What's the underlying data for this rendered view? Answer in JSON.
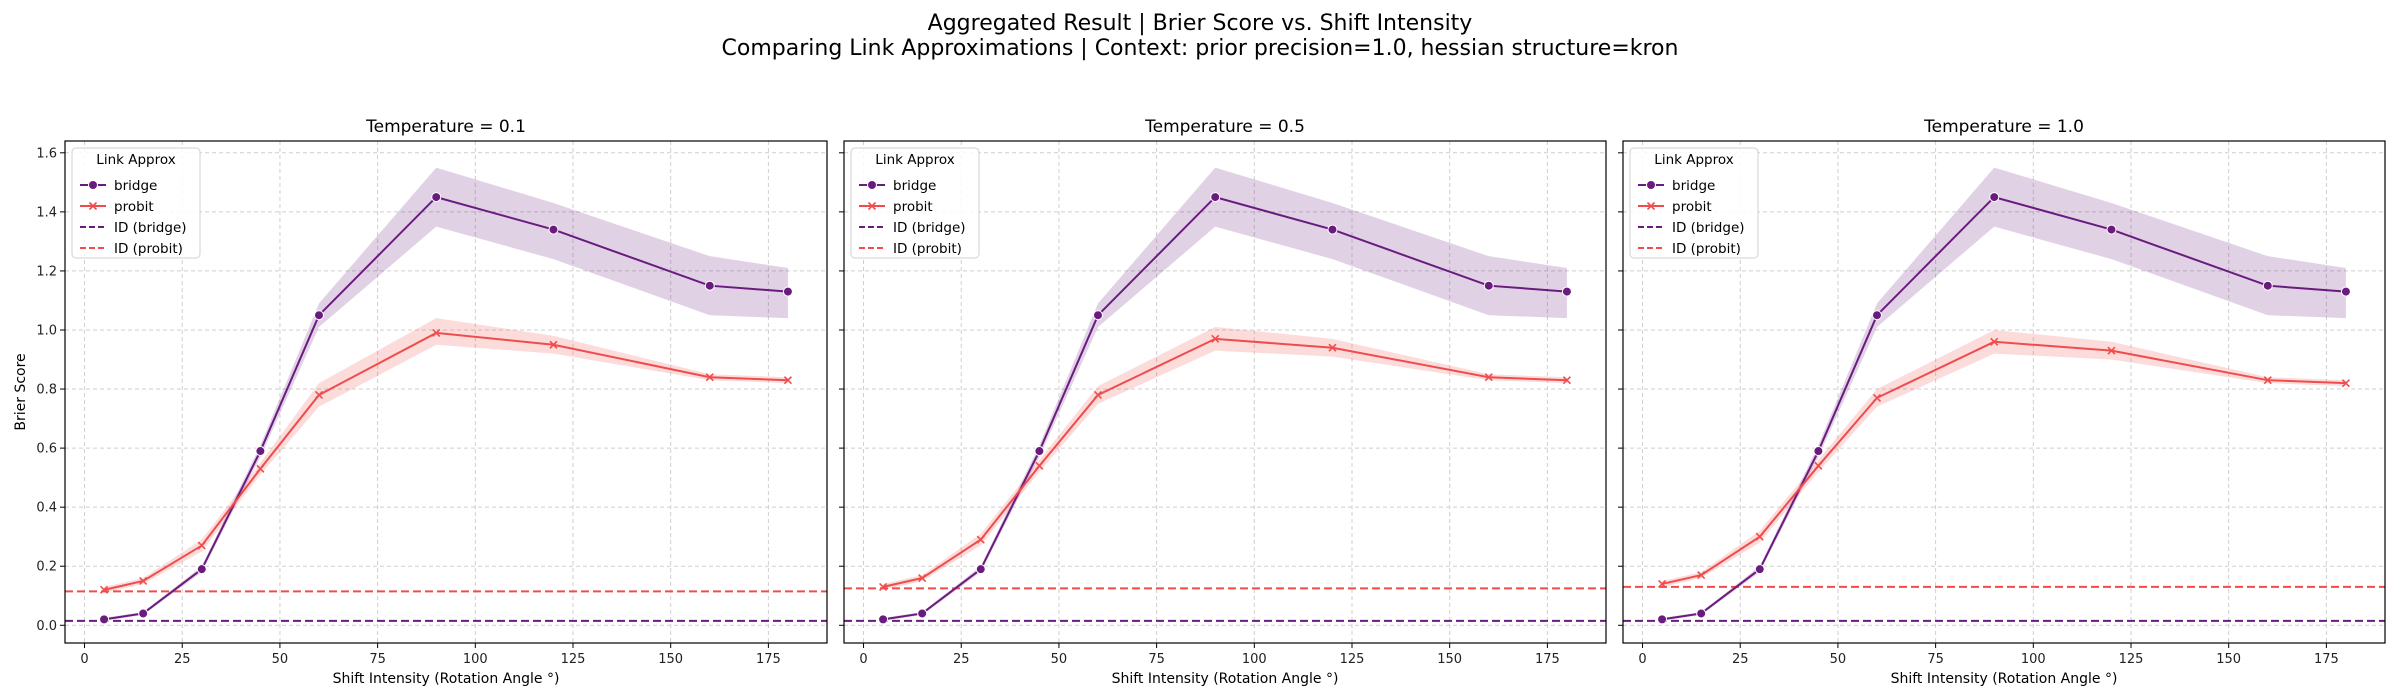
{
  "figure": {
    "title_line1": "Aggregated Result | Brier Score vs. Shift Intensity",
    "title_line2": "Comparing Link Approximations | Context: prior precision=1.0, hessian structure=kron"
  },
  "colors": {
    "bridge": "#6a1b7e",
    "probit": "#ef4d4d"
  },
  "chart_data": [
    {
      "type": "line",
      "title": "Temperature = 0.1",
      "xlabel": "Shift Intensity (Rotation Angle °)",
      "ylabel": "Brier Score",
      "xlim": [
        -5,
        190
      ],
      "ylim": [
        -0.06,
        1.64
      ],
      "xticks": [
        0,
        25,
        50,
        75,
        100,
        125,
        150,
        175
      ],
      "yticks": [
        0.0,
        0.2,
        0.4,
        0.6,
        0.8,
        1.0,
        1.2,
        1.4,
        1.6
      ],
      "grid": true,
      "legend": {
        "title": "Link Approx",
        "position": "top-left"
      },
      "x": [
        5,
        15,
        30,
        45,
        60,
        90,
        120,
        160,
        180
      ],
      "series": [
        {
          "name": "bridge",
          "marker": "o",
          "values": [
            0.02,
            0.04,
            0.19,
            0.59,
            1.05,
            1.45,
            1.34,
            1.15,
            1.13
          ],
          "lower": [
            0.015,
            0.035,
            0.18,
            0.57,
            1.01,
            1.35,
            1.24,
            1.05,
            1.04
          ],
          "upper": [
            0.025,
            0.045,
            0.2,
            0.61,
            1.09,
            1.55,
            1.43,
            1.25,
            1.21
          ]
        },
        {
          "name": "probit",
          "marker": "x",
          "values": [
            0.12,
            0.15,
            0.27,
            0.53,
            0.78,
            0.99,
            0.95,
            0.84,
            0.83
          ],
          "lower": [
            0.11,
            0.14,
            0.25,
            0.51,
            0.74,
            0.95,
            0.92,
            0.83,
            0.82
          ],
          "upper": [
            0.13,
            0.16,
            0.29,
            0.55,
            0.82,
            1.04,
            0.98,
            0.85,
            0.84
          ]
        }
      ],
      "reference_lines": [
        {
          "name": "ID (bridge)",
          "series": "bridge",
          "y": 0.015
        },
        {
          "name": "ID (probit)",
          "series": "probit",
          "y": 0.115
        }
      ]
    },
    {
      "type": "line",
      "title": "Temperature = 0.5",
      "xlabel": "Shift Intensity (Rotation Angle °)",
      "ylabel": "",
      "xlim": [
        -5,
        190
      ],
      "ylim": [
        -0.06,
        1.64
      ],
      "xticks": [
        0,
        25,
        50,
        75,
        100,
        125,
        150,
        175
      ],
      "yticks": [
        0.0,
        0.2,
        0.4,
        0.6,
        0.8,
        1.0,
        1.2,
        1.4,
        1.6
      ],
      "grid": true,
      "legend": {
        "title": "Link Approx",
        "position": "top-left"
      },
      "x": [
        5,
        15,
        30,
        45,
        60,
        90,
        120,
        160,
        180
      ],
      "series": [
        {
          "name": "bridge",
          "marker": "o",
          "values": [
            0.02,
            0.04,
            0.19,
            0.59,
            1.05,
            1.45,
            1.34,
            1.15,
            1.13
          ],
          "lower": [
            0.015,
            0.035,
            0.18,
            0.57,
            1.01,
            1.35,
            1.24,
            1.05,
            1.04
          ],
          "upper": [
            0.025,
            0.045,
            0.2,
            0.61,
            1.09,
            1.55,
            1.43,
            1.25,
            1.21
          ]
        },
        {
          "name": "probit",
          "marker": "x",
          "values": [
            0.13,
            0.16,
            0.29,
            0.54,
            0.78,
            0.97,
            0.94,
            0.84,
            0.83
          ],
          "lower": [
            0.12,
            0.15,
            0.27,
            0.52,
            0.75,
            0.93,
            0.91,
            0.83,
            0.82
          ],
          "upper": [
            0.14,
            0.17,
            0.31,
            0.56,
            0.81,
            1.01,
            0.97,
            0.85,
            0.84
          ]
        }
      ],
      "reference_lines": [
        {
          "name": "ID (bridge)",
          "series": "bridge",
          "y": 0.015
        },
        {
          "name": "ID (probit)",
          "series": "probit",
          "y": 0.125
        }
      ]
    },
    {
      "type": "line",
      "title": "Temperature = 1.0",
      "xlabel": "Shift Intensity (Rotation Angle °)",
      "ylabel": "",
      "xlim": [
        -5,
        190
      ],
      "ylim": [
        -0.06,
        1.64
      ],
      "xticks": [
        0,
        25,
        50,
        75,
        100,
        125,
        150,
        175
      ],
      "yticks": [
        0.0,
        0.2,
        0.4,
        0.6,
        0.8,
        1.0,
        1.2,
        1.4,
        1.6
      ],
      "grid": true,
      "legend": {
        "title": "Link Approx",
        "position": "top-left"
      },
      "x": [
        5,
        15,
        30,
        45,
        60,
        90,
        120,
        160,
        180
      ],
      "series": [
        {
          "name": "bridge",
          "marker": "o",
          "values": [
            0.02,
            0.04,
            0.19,
            0.59,
            1.05,
            1.45,
            1.34,
            1.15,
            1.13
          ],
          "lower": [
            0.015,
            0.035,
            0.18,
            0.57,
            1.01,
            1.35,
            1.24,
            1.05,
            1.04
          ],
          "upper": [
            0.025,
            0.045,
            0.2,
            0.61,
            1.09,
            1.55,
            1.43,
            1.25,
            1.21
          ]
        },
        {
          "name": "probit",
          "marker": "x",
          "values": [
            0.14,
            0.17,
            0.3,
            0.54,
            0.77,
            0.96,
            0.93,
            0.83,
            0.82
          ],
          "lower": [
            0.13,
            0.16,
            0.28,
            0.52,
            0.74,
            0.92,
            0.9,
            0.82,
            0.81
          ],
          "upper": [
            0.15,
            0.18,
            0.32,
            0.56,
            0.8,
            1.0,
            0.96,
            0.84,
            0.83
          ]
        }
      ],
      "reference_lines": [
        {
          "name": "ID (bridge)",
          "series": "bridge",
          "y": 0.015
        },
        {
          "name": "ID (probit)",
          "series": "probit",
          "y": 0.13
        }
      ]
    }
  ]
}
